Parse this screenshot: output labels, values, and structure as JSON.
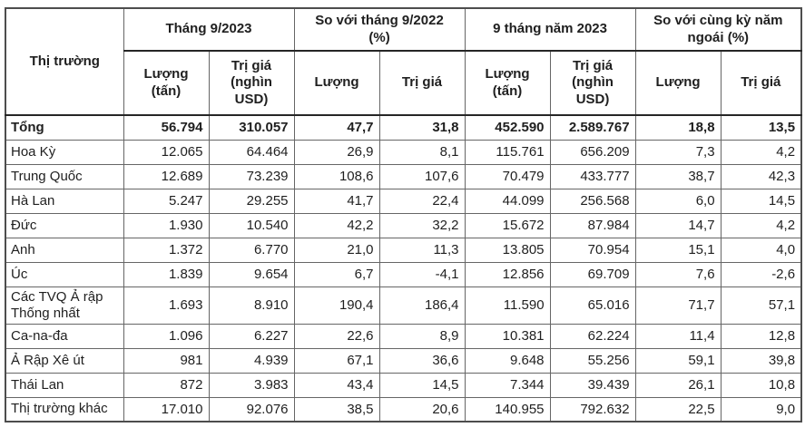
{
  "colors": {
    "text": "#1f1f1f",
    "grid_line": "#666666",
    "heavy_line": "#262626",
    "background": "#ffffff"
  },
  "chart_data": {
    "type": "table",
    "corner_header": "Thị trường",
    "groups": [
      {
        "label": "Tháng 9/2023",
        "subcolumns": [
          "Lượng (tấn)",
          "Trị giá (nghìn USD)"
        ]
      },
      {
        "label": "So với tháng 9/2022 (%)",
        "subcolumns": [
          "Lượng",
          "Trị giá"
        ]
      },
      {
        "label": "9 tháng năm 2023",
        "subcolumns": [
          "Lượng (tấn)",
          "Trị giá (nghìn USD)"
        ]
      },
      {
        "label": "So với cùng kỳ năm ngoái (%)",
        "subcolumns": [
          "Lượng",
          "Trị giá"
        ]
      }
    ],
    "rows": [
      {
        "label": "Tổng",
        "bold": true,
        "values": [
          "56.794",
          "310.057",
          "47,7",
          "31,8",
          "452.590",
          "2.589.767",
          "18,8",
          "13,5"
        ]
      },
      {
        "label": "Hoa Kỳ",
        "bold": false,
        "values": [
          "12.065",
          "64.464",
          "26,9",
          "8,1",
          "115.761",
          "656.209",
          "7,3",
          "4,2"
        ]
      },
      {
        "label": "Trung Quốc",
        "bold": false,
        "values": [
          "12.689",
          "73.239",
          "108,6",
          "107,6",
          "70.479",
          "433.777",
          "38,7",
          "42,3"
        ]
      },
      {
        "label": "Hà Lan",
        "bold": false,
        "values": [
          "5.247",
          "29.255",
          "41,7",
          "22,4",
          "44.099",
          "256.568",
          "6,0",
          "14,5"
        ]
      },
      {
        "label": "Đức",
        "bold": false,
        "values": [
          "1.930",
          "10.540",
          "42,2",
          "32,2",
          "15.672",
          "87.984",
          "14,7",
          "4,2"
        ]
      },
      {
        "label": "Anh",
        "bold": false,
        "values": [
          "1.372",
          "6.770",
          "21,0",
          "11,3",
          "13.805",
          "70.954",
          "15,1",
          "4,0"
        ]
      },
      {
        "label": "Úc",
        "bold": false,
        "values": [
          "1.839",
          "9.654",
          "6,7",
          "-4,1",
          "12.856",
          "69.709",
          "7,6",
          "-2,6"
        ]
      },
      {
        "label": "Các TVQ Ả rập Thống nhất",
        "bold": false,
        "values": [
          "1.693",
          "8.910",
          "190,4",
          "186,4",
          "11.590",
          "65.016",
          "71,7",
          "57,1"
        ]
      },
      {
        "label": "Ca-na-đa",
        "bold": false,
        "values": [
          "1.096",
          "6.227",
          "22,6",
          "8,9",
          "10.381",
          "62.224",
          "11,4",
          "12,8"
        ]
      },
      {
        "label": "Ả Rập Xê út",
        "bold": false,
        "values": [
          "981",
          "4.939",
          "67,1",
          "36,6",
          "9.648",
          "55.256",
          "59,1",
          "39,8"
        ]
      },
      {
        "label": "Thái Lan",
        "bold": false,
        "values": [
          "872",
          "3.983",
          "43,4",
          "14,5",
          "7.344",
          "39.439",
          "26,1",
          "10,8"
        ]
      },
      {
        "label": "Thị trường khác",
        "bold": false,
        "values": [
          "17.010",
          "92.076",
          "38,5",
          "20,6",
          "140.955",
          "792.632",
          "22,5",
          "9,0"
        ]
      }
    ]
  }
}
